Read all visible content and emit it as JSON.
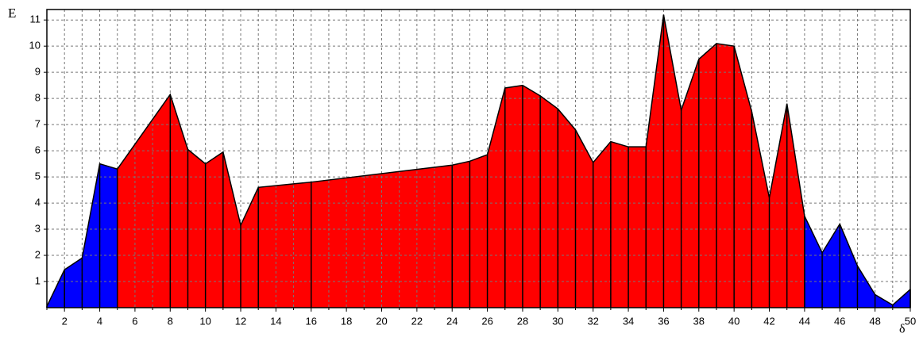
{
  "chart_data": {
    "type": "area",
    "y_label": "E",
    "x_label": "δ",
    "x": [
      1,
      2,
      3,
      4,
      5,
      8,
      9,
      10,
      11,
      12,
      13,
      16,
      24,
      25,
      26,
      27,
      28,
      29,
      30,
      31,
      32,
      33,
      34,
      35,
      36,
      37,
      38,
      39,
      40,
      41,
      42,
      43,
      44,
      45,
      46,
      47,
      48,
      49,
      50
    ],
    "series": [
      {
        "color": "#0000ff",
        "values": [
          0.05,
          1.45,
          1.9,
          5.5,
          5.3,
          null,
          null,
          null,
          null,
          null,
          null,
          null,
          null,
          null,
          null,
          null,
          null,
          null,
          null,
          null,
          null,
          null,
          null,
          null,
          null,
          null,
          null,
          null,
          null,
          null,
          null,
          null,
          3.5,
          2.1,
          3.2,
          1.6,
          0.5,
          0.1,
          0.7
        ]
      },
      {
        "color": "#ff0000",
        "values": [
          null,
          null,
          null,
          null,
          5.3,
          8.15,
          6.05,
          5.5,
          5.95,
          3.15,
          4.6,
          4.8,
          5.45,
          5.6,
          5.85,
          8.4,
          8.5,
          8.1,
          7.6,
          6.8,
          5.55,
          6.35,
          6.15,
          6.15,
          11.2,
          7.55,
          9.5,
          10.1,
          10.0,
          7.5,
          4.2,
          7.8,
          3.5,
          null,
          null,
          null,
          null,
          null,
          null
        ]
      }
    ],
    "xlim": [
      1,
      50
    ],
    "ylim": [
      0,
      11.4
    ],
    "xticks": [
      2,
      4,
      6,
      8,
      10,
      12,
      14,
      16,
      18,
      20,
      22,
      24,
      26,
      28,
      30,
      32,
      34,
      36,
      38,
      40,
      42,
      44,
      46,
      48,
      50
    ],
    "xminorticks": [
      1,
      3,
      5,
      7,
      9,
      11,
      13,
      15,
      17,
      19,
      21,
      23,
      25,
      27,
      29,
      31,
      33,
      35,
      37,
      39,
      41,
      43,
      45,
      47,
      49
    ],
    "yticks": [
      1,
      2,
      3,
      4,
      5,
      6,
      7,
      8,
      9,
      10,
      11
    ],
    "grid": true
  }
}
